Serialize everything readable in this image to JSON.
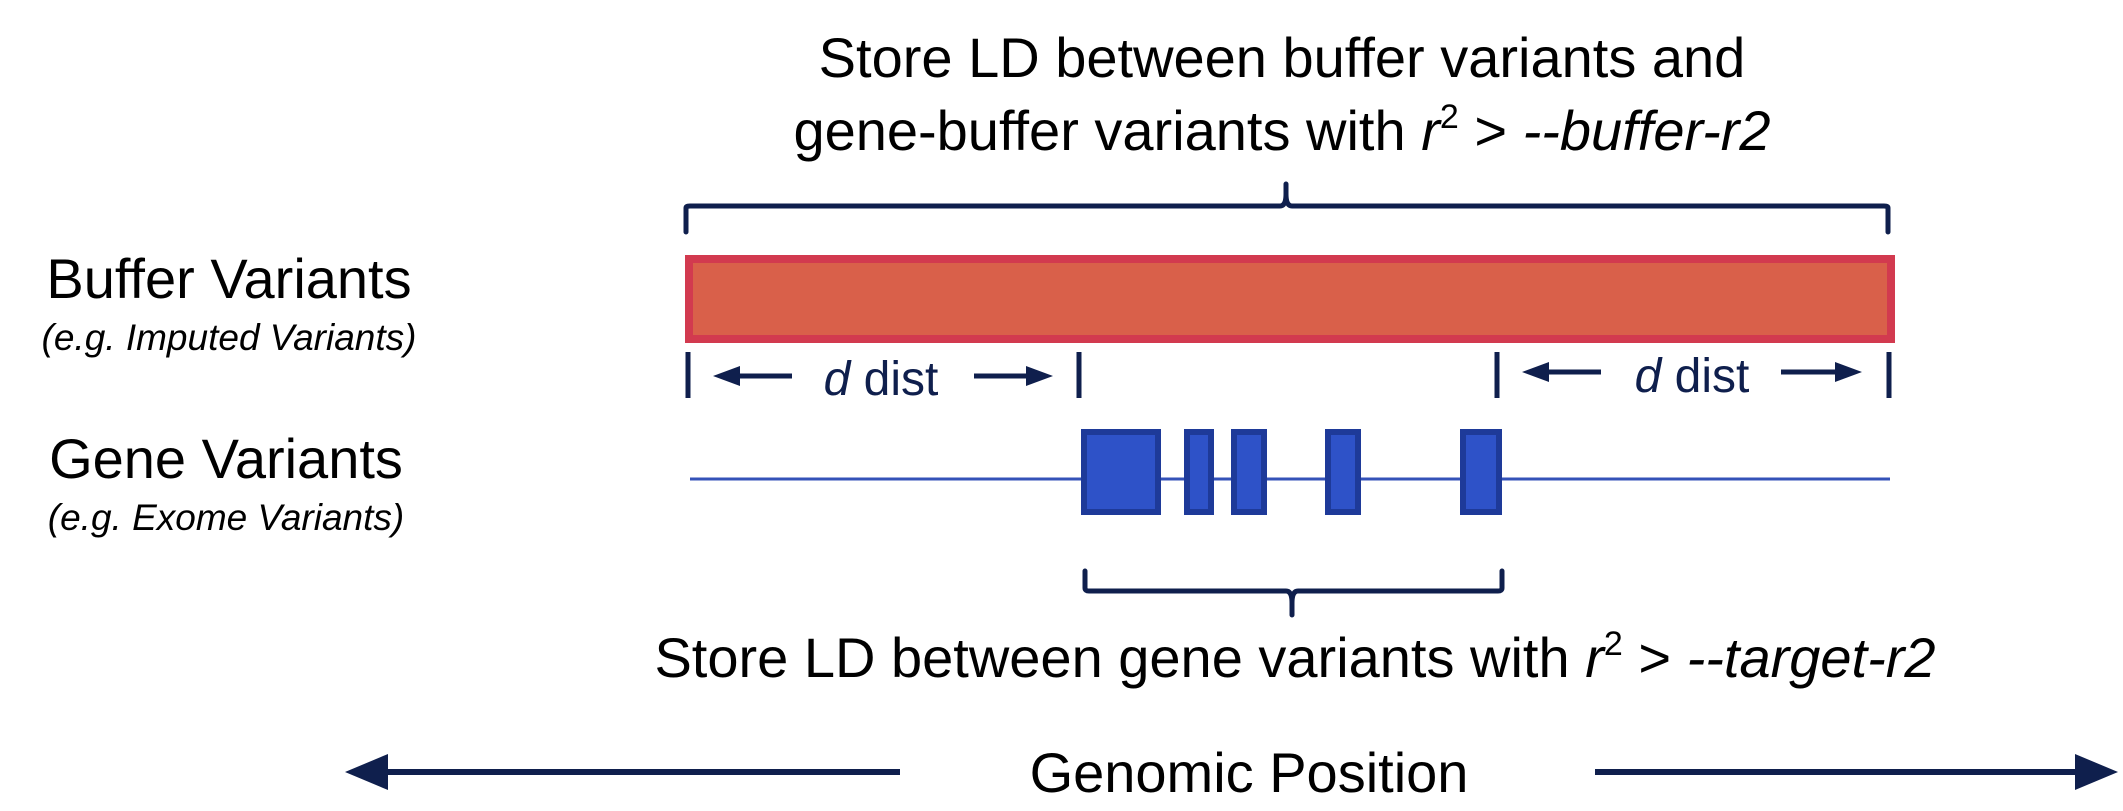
{
  "top_annotation": {
    "line1": "Store LD between buffer variants and",
    "line2_prefix": "gene-buffer variants with ",
    "line2_var": "r",
    "line2_sup": "2",
    "line2_op": " > ",
    "line2_param": "--buffer-r2"
  },
  "rows": {
    "buffer": {
      "label": "Buffer Variants",
      "example": "(e.g. Imputed Variants)"
    },
    "gene": {
      "label": "Gene Variants",
      "example": "(e.g. Exome Variants)"
    }
  },
  "distance": {
    "var": "d",
    "text": " dist"
  },
  "bottom_annotation": {
    "prefix": "Store LD between gene variants with ",
    "var": "r",
    "sup": "2",
    "op": " > ",
    "param": "--target-r2"
  },
  "axis": {
    "label": "Genomic Position"
  },
  "colors": {
    "buffer_fill": "#d9604a",
    "buffer_border": "#d23a4f",
    "exon_fill": "#2e52c8",
    "exon_border": "#1e3a99",
    "gene_line": "#3452b8",
    "bracket": "#0f1f4d",
    "arrow": "#0f1f4d"
  }
}
